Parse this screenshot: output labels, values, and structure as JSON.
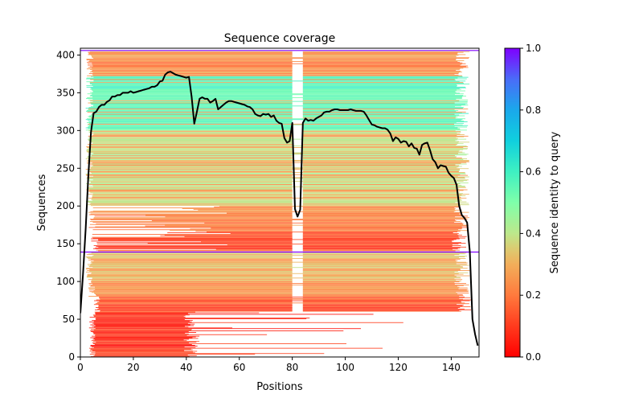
{
  "chart_data": {
    "type": "heatmap",
    "title": "Sequence coverage",
    "xlabel": "Positions",
    "ylabel": "Sequences",
    "xlim": [
      0,
      150.5
    ],
    "ylim": [
      0,
      409
    ],
    "xticks": [
      0,
      20,
      40,
      60,
      80,
      100,
      120,
      140
    ],
    "yticks": [
      0,
      50,
      100,
      150,
      200,
      250,
      300,
      350,
      400
    ],
    "grid": false,
    "colorbar": {
      "label": "Sequence identity to query",
      "range": [
        0.0,
        1.0
      ],
      "ticks": [
        0.0,
        0.2,
        0.4,
        0.6,
        0.8,
        1.0
      ],
      "tick_labels": [
        "0.0",
        "0.2",
        "0.4",
        "0.6",
        "0.8",
        "1.0"
      ],
      "colormap": "rainbow_r",
      "placement": "right"
    },
    "query_markers": [
      {
        "name": "query-line-top",
        "y": 406,
        "identity": 1.0
      },
      {
        "name": "query-line-middle",
        "y": 139,
        "identity": 1.0
      }
    ],
    "gap_columns": [
      [
        80,
        82
      ],
      [
        82,
        84
      ]
    ],
    "bands": [
      {
        "y_from": 0,
        "y_to": 60,
        "identity": 0.08,
        "x_start": 3,
        "x_end": 45,
        "tail_to": 145
      },
      {
        "y_from": 60,
        "y_to": 80,
        "identity": 0.13,
        "x_start": 5,
        "x_end": 148
      },
      {
        "y_from": 80,
        "y_to": 100,
        "identity": 0.25,
        "x_start": 3,
        "x_end": 147
      },
      {
        "y_from": 100,
        "y_to": 139,
        "identity": 0.32,
        "x_start": 2,
        "x_end": 147
      },
      {
        "y_from": 140,
        "y_to": 165,
        "identity": 0.12,
        "x_start": 4,
        "x_end": 146
      },
      {
        "y_from": 165,
        "y_to": 200,
        "identity": 0.22,
        "x_start": 3,
        "x_end": 147
      },
      {
        "y_from": 200,
        "y_to": 300,
        "identity": 0.38,
        "x_start": 2,
        "x_end": 147
      },
      {
        "y_from": 300,
        "y_to": 372,
        "identity": 0.55,
        "x_start": 2,
        "x_end": 147
      },
      {
        "y_from": 372,
        "y_to": 405,
        "identity": 0.24,
        "x_start": 2,
        "x_end": 147
      }
    ],
    "series": [
      {
        "name": "coverage",
        "color": "#000000",
        "x": [
          0,
          1,
          2,
          3,
          4,
          5,
          6,
          7,
          8,
          9,
          10,
          11,
          12,
          13,
          14,
          15,
          16,
          17,
          18,
          19,
          20,
          21,
          22,
          23,
          24,
          25,
          26,
          27,
          28,
          29,
          30,
          31,
          32,
          33,
          34,
          35,
          36,
          37,
          38,
          39,
          40,
          41,
          42,
          43,
          44,
          45,
          46,
          47,
          48,
          49,
          50,
          51,
          52,
          53,
          54,
          55,
          56,
          57,
          58,
          59,
          60,
          61,
          62,
          63,
          64,
          65,
          66,
          67,
          68,
          69,
          70,
          71,
          72,
          73,
          74,
          75,
          76,
          77,
          78,
          79,
          80,
          81,
          82,
          83,
          84,
          85,
          86,
          87,
          88,
          89,
          90,
          91,
          92,
          93,
          94,
          95,
          96,
          97,
          98,
          99,
          100,
          101,
          102,
          103,
          104,
          105,
          106,
          107,
          108,
          109,
          110,
          111,
          112,
          113,
          114,
          115,
          116,
          117,
          118,
          119,
          120,
          121,
          122,
          123,
          124,
          125,
          126,
          127,
          128,
          129,
          130,
          131,
          132,
          133,
          134,
          135,
          136,
          137,
          138,
          139,
          140,
          141,
          142,
          143,
          144,
          145,
          146,
          147,
          148,
          149,
          150
        ],
        "values": [
          58,
          110,
          170,
          240,
          298,
          323,
          325,
          331,
          334,
          334,
          338,
          340,
          345,
          345,
          347,
          347,
          350,
          350,
          350,
          352,
          350,
          351,
          352,
          353,
          354,
          355,
          356,
          358,
          358,
          360,
          365,
          366,
          374,
          377,
          378,
          376,
          374,
          373,
          372,
          371,
          370,
          371,
          345,
          309,
          325,
          342,
          344,
          342,
          342,
          337,
          339,
          342,
          328,
          331,
          334,
          337,
          339,
          339,
          338,
          337,
          336,
          335,
          334,
          332,
          331,
          328,
          322,
          320,
          319,
          322,
          321,
          322,
          318,
          320,
          313,
          310,
          309,
          290,
          284,
          286,
          310,
          196,
          186,
          195,
          310,
          316,
          313,
          314,
          313,
          316,
          318,
          320,
          324,
          325,
          325,
          327,
          328,
          328,
          327,
          327,
          327,
          327,
          328,
          327,
          326,
          326,
          326,
          325,
          320,
          314,
          308,
          307,
          305,
          304,
          303,
          303,
          301,
          296,
          286,
          291,
          289,
          284,
          286,
          285,
          279,
          283,
          277,
          276,
          268,
          281,
          283,
          284,
          274,
          262,
          258,
          250,
          254,
          253,
          252,
          244,
          240,
          237,
          228,
          200,
          188,
          184,
          178,
          140,
          50,
          30,
          15
        ]
      }
    ]
  }
}
